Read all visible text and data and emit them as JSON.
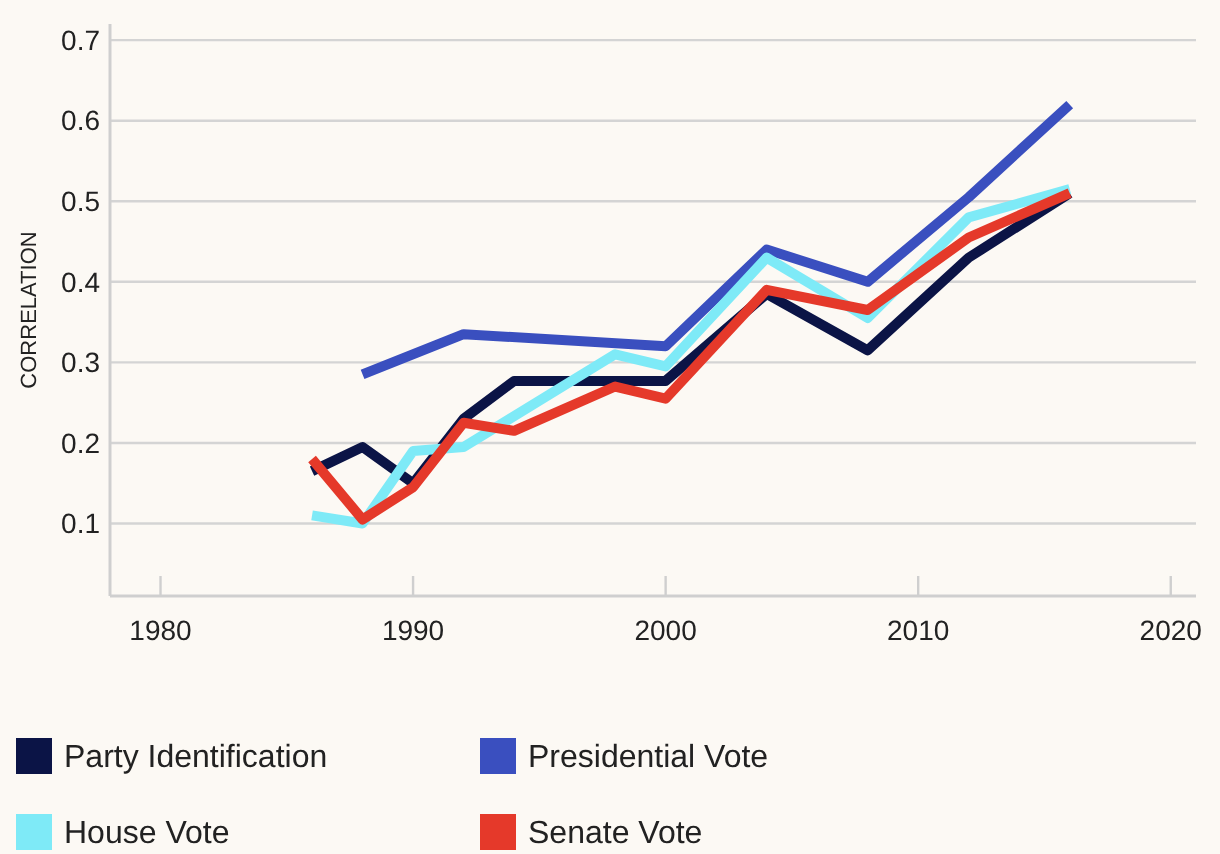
{
  "chart_data": {
    "type": "line",
    "ylabel": "CORRELATION",
    "xlim": [
      1978,
      2021
    ],
    "xticks": [
      1980,
      1990,
      2000,
      2010,
      2020
    ],
    "ylim": [
      0.01,
      0.72
    ],
    "yticks": [
      0.1,
      0.2,
      0.3,
      0.4,
      0.5,
      0.6,
      0.7
    ],
    "grid": "y",
    "legend": "bottom",
    "marker": "none",
    "line_style": "solid",
    "series": [
      {
        "name": "Party Identification",
        "color": "#0b1446",
        "x": [
          1986,
          1988,
          1990,
          1992,
          1994,
          1998,
          2000,
          2004,
          2008,
          2012,
          2016
        ],
        "values": [
          0.165,
          0.195,
          0.15,
          0.23,
          0.277,
          0.277,
          0.277,
          0.385,
          0.315,
          0.43,
          0.51
        ]
      },
      {
        "name": "Presidential Vote",
        "color": "#3a4fbf",
        "x": [
          1988,
          1992,
          2000,
          2004,
          2008,
          2012,
          2016
        ],
        "values": [
          0.285,
          0.335,
          0.32,
          0.44,
          0.4,
          0.505,
          0.62
        ]
      },
      {
        "name": "House Vote",
        "color": "#7eeaf7",
        "x": [
          1986,
          1988,
          1990,
          1992,
          1998,
          2000,
          2004,
          2008,
          2012,
          2016
        ],
        "values": [
          0.11,
          0.1,
          0.19,
          0.195,
          0.31,
          0.295,
          0.43,
          0.355,
          0.48,
          0.515
        ]
      },
      {
        "name": "Senate Vote",
        "color": "#e5392a",
        "x": [
          1986,
          1988,
          1990,
          1992,
          1994,
          1998,
          2000,
          2004,
          2008,
          2012,
          2016
        ],
        "values": [
          0.18,
          0.105,
          0.145,
          0.225,
          0.215,
          0.27,
          0.255,
          0.39,
          0.365,
          0.455,
          0.51
        ]
      }
    ]
  }
}
